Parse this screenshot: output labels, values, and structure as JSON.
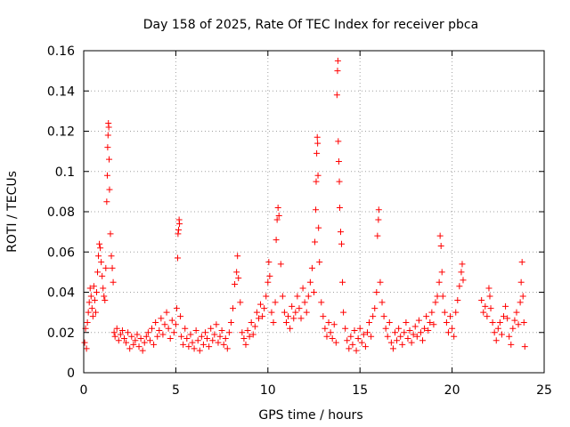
{
  "chart_data": {
    "type": "scatter",
    "title": "Day 158 of 2025, Rate Of TEC Index for receiver pbca",
    "xlabel": "GPS time / hours",
    "ylabel": "ROTI / TECUs",
    "xlim": [
      0,
      25
    ],
    "ylim": [
      0,
      0.16
    ],
    "xticks": [
      0,
      5,
      10,
      15,
      20,
      25
    ],
    "yticks": [
      0,
      0.02,
      0.04,
      0.06,
      0.08,
      0.1,
      0.12,
      0.14,
      0.16
    ],
    "xtick_labels": [
      "0",
      "5",
      "10",
      "15",
      "20",
      "25"
    ],
    "ytick_labels": [
      "0",
      "0.02",
      "0.04",
      "0.06",
      "0.08",
      "0.1",
      "0.12",
      "0.14",
      "0.16"
    ],
    "grid": true,
    "marker": "plus",
    "color": "#ff0000",
    "points": [
      [
        0.05,
        0.015
      ],
      [
        0.1,
        0.022
      ],
      [
        0.15,
        0.012
      ],
      [
        0.2,
        0.025
      ],
      [
        0.25,
        0.03
      ],
      [
        0.3,
        0.035
      ],
      [
        0.35,
        0.042
      ],
      [
        0.4,
        0.038
      ],
      [
        0.45,
        0.032
      ],
      [
        0.5,
        0.028
      ],
      [
        0.55,
        0.043
      ],
      [
        0.6,
        0.036
      ],
      [
        0.65,
        0.03
      ],
      [
        0.7,
        0.04
      ],
      [
        0.75,
        0.05
      ],
      [
        0.8,
        0.058
      ],
      [
        0.85,
        0.064
      ],
      [
        0.9,
        0.062
      ],
      [
        0.95,
        0.055
      ],
      [
        1.0,
        0.048
      ],
      [
        1.05,
        0.042
      ],
      [
        1.1,
        0.038
      ],
      [
        1.15,
        0.036
      ],
      [
        1.2,
        0.052
      ],
      [
        1.25,
        0.085
      ],
      [
        1.28,
        0.098
      ],
      [
        1.3,
        0.112
      ],
      [
        1.32,
        0.118
      ],
      [
        1.34,
        0.124
      ],
      [
        1.36,
        0.122
      ],
      [
        1.38,
        0.106
      ],
      [
        1.4,
        0.091
      ],
      [
        1.45,
        0.069
      ],
      [
        1.5,
        0.058
      ],
      [
        1.55,
        0.052
      ],
      [
        1.6,
        0.045
      ],
      [
        1.65,
        0.02
      ],
      [
        1.7,
        0.018
      ],
      [
        1.8,
        0.022
      ],
      [
        1.9,
        0.016
      ],
      [
        2.0,
        0.019
      ],
      [
        2.1,
        0.021
      ],
      [
        2.2,
        0.017
      ],
      [
        2.3,
        0.015
      ],
      [
        2.4,
        0.02
      ],
      [
        2.5,
        0.012
      ],
      [
        2.6,
        0.018
      ],
      [
        2.7,
        0.014
      ],
      [
        2.8,
        0.016
      ],
      [
        2.9,
        0.019
      ],
      [
        3.0,
        0.013
      ],
      [
        3.1,
        0.017
      ],
      [
        3.2,
        0.011
      ],
      [
        3.3,
        0.015
      ],
      [
        3.4,
        0.018
      ],
      [
        3.5,
        0.02
      ],
      [
        3.6,
        0.016
      ],
      [
        3.7,
        0.022
      ],
      [
        3.8,
        0.014
      ],
      [
        3.9,
        0.025
      ],
      [
        4.0,
        0.018
      ],
      [
        4.1,
        0.021
      ],
      [
        4.2,
        0.027
      ],
      [
        4.3,
        0.019
      ],
      [
        4.4,
        0.024
      ],
      [
        4.5,
        0.03
      ],
      [
        4.6,
        0.022
      ],
      [
        4.7,
        0.017
      ],
      [
        4.8,
        0.026
      ],
      [
        4.9,
        0.02
      ],
      [
        5.0,
        0.024
      ],
      [
        5.05,
        0.032
      ],
      [
        5.1,
        0.057
      ],
      [
        5.12,
        0.069
      ],
      [
        5.15,
        0.071
      ],
      [
        5.18,
        0.076
      ],
      [
        5.2,
        0.074
      ],
      [
        5.25,
        0.028
      ],
      [
        5.3,
        0.018
      ],
      [
        5.4,
        0.014
      ],
      [
        5.5,
        0.022
      ],
      [
        5.6,
        0.017
      ],
      [
        5.7,
        0.013
      ],
      [
        5.8,
        0.019
      ],
      [
        5.9,
        0.015
      ],
      [
        6.0,
        0.012
      ],
      [
        6.1,
        0.021
      ],
      [
        6.2,
        0.016
      ],
      [
        6.3,
        0.011
      ],
      [
        6.4,
        0.018
      ],
      [
        6.5,
        0.014
      ],
      [
        6.6,
        0.02
      ],
      [
        6.7,
        0.017
      ],
      [
        6.8,
        0.013
      ],
      [
        6.9,
        0.022
      ],
      [
        7.0,
        0.016
      ],
      [
        7.1,
        0.019
      ],
      [
        7.2,
        0.024
      ],
      [
        7.3,
        0.015
      ],
      [
        7.4,
        0.018
      ],
      [
        7.5,
        0.021
      ],
      [
        7.6,
        0.014
      ],
      [
        7.7,
        0.017
      ],
      [
        7.8,
        0.012
      ],
      [
        7.9,
        0.02
      ],
      [
        8.0,
        0.025
      ],
      [
        8.1,
        0.032
      ],
      [
        8.2,
        0.044
      ],
      [
        8.3,
        0.05
      ],
      [
        8.35,
        0.058
      ],
      [
        8.4,
        0.047
      ],
      [
        8.5,
        0.035
      ],
      [
        8.6,
        0.02
      ],
      [
        8.7,
        0.017
      ],
      [
        8.8,
        0.014
      ],
      [
        8.9,
        0.021
      ],
      [
        9.0,
        0.018
      ],
      [
        9.1,
        0.025
      ],
      [
        9.2,
        0.019
      ],
      [
        9.3,
        0.023
      ],
      [
        9.4,
        0.03
      ],
      [
        9.5,
        0.027
      ],
      [
        9.6,
        0.034
      ],
      [
        9.7,
        0.028
      ],
      [
        9.8,
        0.032
      ],
      [
        9.9,
        0.038
      ],
      [
        10.0,
        0.045
      ],
      [
        10.05,
        0.055
      ],
      [
        10.1,
        0.048
      ],
      [
        10.2,
        0.03
      ],
      [
        10.3,
        0.025
      ],
      [
        10.4,
        0.035
      ],
      [
        10.45,
        0.066
      ],
      [
        10.5,
        0.076
      ],
      [
        10.55,
        0.082
      ],
      [
        10.6,
        0.078
      ],
      [
        10.7,
        0.054
      ],
      [
        10.8,
        0.038
      ],
      [
        10.9,
        0.03
      ],
      [
        11.0,
        0.025
      ],
      [
        11.1,
        0.028
      ],
      [
        11.2,
        0.022
      ],
      [
        11.3,
        0.033
      ],
      [
        11.4,
        0.027
      ],
      [
        11.5,
        0.03
      ],
      [
        11.6,
        0.038
      ],
      [
        11.7,
        0.032
      ],
      [
        11.8,
        0.027
      ],
      [
        11.9,
        0.042
      ],
      [
        12.0,
        0.035
      ],
      [
        12.1,
        0.03
      ],
      [
        12.2,
        0.038
      ],
      [
        12.3,
        0.045
      ],
      [
        12.4,
        0.052
      ],
      [
        12.5,
        0.04
      ],
      [
        12.55,
        0.065
      ],
      [
        12.6,
        0.081
      ],
      [
        12.62,
        0.095
      ],
      [
        12.65,
        0.109
      ],
      [
        12.68,
        0.117
      ],
      [
        12.7,
        0.114
      ],
      [
        12.72,
        0.098
      ],
      [
        12.75,
        0.072
      ],
      [
        12.8,
        0.055
      ],
      [
        12.9,
        0.035
      ],
      [
        13.0,
        0.028
      ],
      [
        13.1,
        0.022
      ],
      [
        13.2,
        0.018
      ],
      [
        13.3,
        0.025
      ],
      [
        13.4,
        0.02
      ],
      [
        13.5,
        0.017
      ],
      [
        13.6,
        0.024
      ],
      [
        13.7,
        0.015
      ],
      [
        13.75,
        0.138
      ],
      [
        13.78,
        0.15
      ],
      [
        13.8,
        0.155
      ],
      [
        13.82,
        0.115
      ],
      [
        13.85,
        0.105
      ],
      [
        13.88,
        0.095
      ],
      [
        13.9,
        0.082
      ],
      [
        13.95,
        0.07
      ],
      [
        14.0,
        0.064
      ],
      [
        14.05,
        0.045
      ],
      [
        14.1,
        0.03
      ],
      [
        14.2,
        0.022
      ],
      [
        14.3,
        0.016
      ],
      [
        14.4,
        0.012
      ],
      [
        14.5,
        0.018
      ],
      [
        14.6,
        0.014
      ],
      [
        14.7,
        0.021
      ],
      [
        14.8,
        0.011
      ],
      [
        14.9,
        0.017
      ],
      [
        15.0,
        0.022
      ],
      [
        15.1,
        0.015
      ],
      [
        15.2,
        0.019
      ],
      [
        15.3,
        0.013
      ],
      [
        15.4,
        0.02
      ],
      [
        15.5,
        0.025
      ],
      [
        15.6,
        0.018
      ],
      [
        15.7,
        0.028
      ],
      [
        15.8,
        0.032
      ],
      [
        15.9,
        0.04
      ],
      [
        15.95,
        0.068
      ],
      [
        16.0,
        0.076
      ],
      [
        16.02,
        0.081
      ],
      [
        16.1,
        0.045
      ],
      [
        16.2,
        0.035
      ],
      [
        16.3,
        0.028
      ],
      [
        16.4,
        0.022
      ],
      [
        16.5,
        0.018
      ],
      [
        16.6,
        0.025
      ],
      [
        16.7,
        0.015
      ],
      [
        16.8,
        0.012
      ],
      [
        16.9,
        0.02
      ],
      [
        17.0,
        0.016
      ],
      [
        17.1,
        0.022
      ],
      [
        17.2,
        0.018
      ],
      [
        17.3,
        0.014
      ],
      [
        17.4,
        0.02
      ],
      [
        17.5,
        0.025
      ],
      [
        17.6,
        0.017
      ],
      [
        17.7,
        0.021
      ],
      [
        17.8,
        0.015
      ],
      [
        17.9,
        0.019
      ],
      [
        18.0,
        0.023
      ],
      [
        18.1,
        0.018
      ],
      [
        18.2,
        0.026
      ],
      [
        18.3,
        0.02
      ],
      [
        18.4,
        0.016
      ],
      [
        18.5,
        0.022
      ],
      [
        18.6,
        0.028
      ],
      [
        18.7,
        0.021
      ],
      [
        18.8,
        0.025
      ],
      [
        18.9,
        0.03
      ],
      [
        19.0,
        0.024
      ],
      [
        19.1,
        0.035
      ],
      [
        19.2,
        0.038
      ],
      [
        19.3,
        0.045
      ],
      [
        19.35,
        0.068
      ],
      [
        19.4,
        0.063
      ],
      [
        19.45,
        0.05
      ],
      [
        19.5,
        0.038
      ],
      [
        19.6,
        0.03
      ],
      [
        19.7,
        0.025
      ],
      [
        19.8,
        0.02
      ],
      [
        19.9,
        0.028
      ],
      [
        20.0,
        0.022
      ],
      [
        20.1,
        0.018
      ],
      [
        20.2,
        0.03
      ],
      [
        20.3,
        0.036
      ],
      [
        20.4,
        0.043
      ],
      [
        20.5,
        0.05
      ],
      [
        20.55,
        0.054
      ],
      [
        20.6,
        0.046
      ],
      [
        21.6,
        0.036
      ],
      [
        21.7,
        0.03
      ],
      [
        21.8,
        0.033
      ],
      [
        21.9,
        0.028
      ],
      [
        22.0,
        0.042
      ],
      [
        22.05,
        0.038
      ],
      [
        22.1,
        0.032
      ],
      [
        22.2,
        0.025
      ],
      [
        22.3,
        0.02
      ],
      [
        22.4,
        0.016
      ],
      [
        22.5,
        0.022
      ],
      [
        22.6,
        0.025
      ],
      [
        22.7,
        0.019
      ],
      [
        22.8,
        0.028
      ],
      [
        22.9,
        0.033
      ],
      [
        23.0,
        0.027
      ],
      [
        23.1,
        0.018
      ],
      [
        23.2,
        0.014
      ],
      [
        23.3,
        0.022
      ],
      [
        23.4,
        0.026
      ],
      [
        23.5,
        0.03
      ],
      [
        23.6,
        0.024
      ],
      [
        23.7,
        0.035
      ],
      [
        23.75,
        0.045
      ],
      [
        23.8,
        0.055
      ],
      [
        23.85,
        0.038
      ],
      [
        23.9,
        0.025
      ],
      [
        23.95,
        0.013
      ]
    ]
  }
}
